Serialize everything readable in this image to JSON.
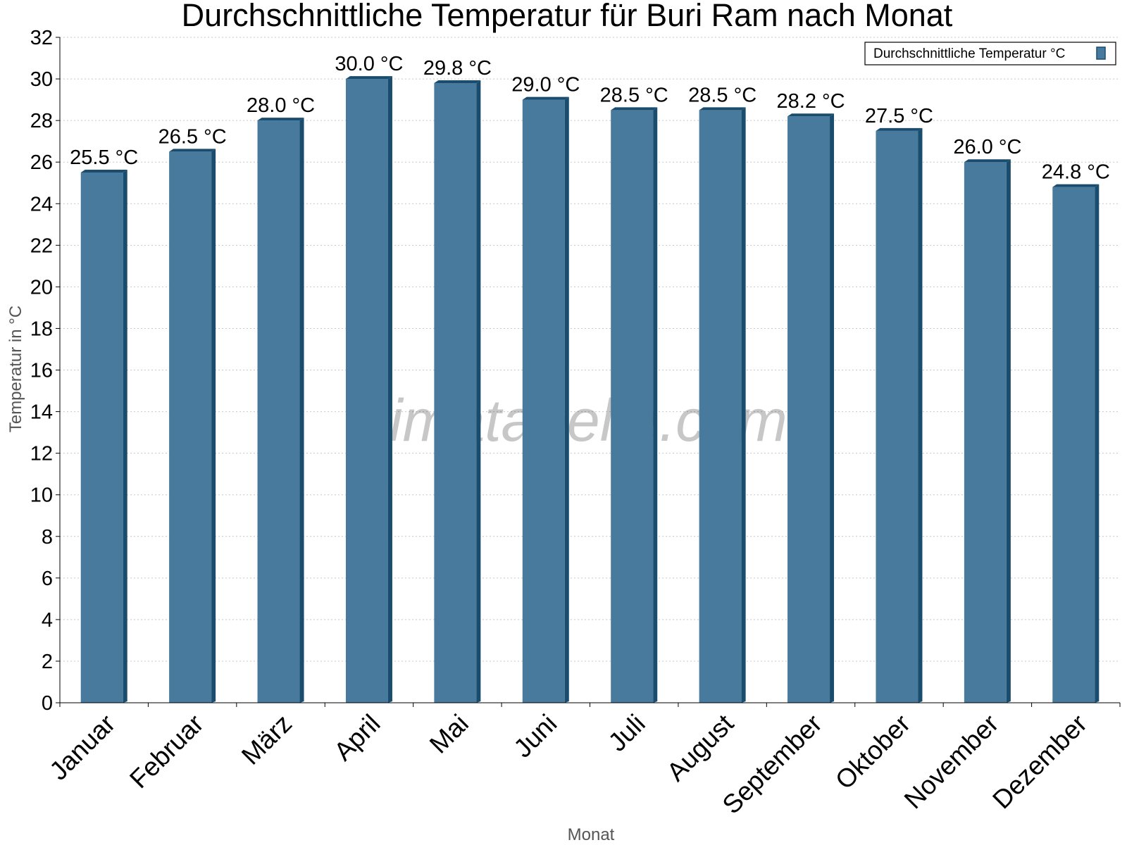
{
  "chart_data": {
    "type": "bar",
    "title": "Durchschnittliche Temperatur für Buri Ram nach Monat",
    "xlabel": "Monat",
    "ylabel": "Temperatur in °C",
    "categories": [
      "Januar",
      "Februar",
      "März",
      "April",
      "Mai",
      "Juni",
      "Juli",
      "August",
      "September",
      "Oktober",
      "November",
      "Dezember"
    ],
    "series": [
      {
        "name": "Durchschnittliche Temperatur °C",
        "values": [
          25.5,
          26.5,
          28.0,
          30.0,
          29.8,
          29.0,
          28.5,
          28.5,
          28.2,
          27.5,
          26.0,
          24.8
        ],
        "data_labels": [
          "25.5 °C",
          "26.5 °C",
          "28.0 °C",
          "30.0 °C",
          "29.8 °C",
          "29.0 °C",
          "28.5 °C",
          "28.5 °C",
          "28.2 °C",
          "27.5 °C",
          "26.0 °C",
          "24.8 °C"
        ],
        "color": "#477a9d",
        "edge_color": "#1a4c6e"
      }
    ],
    "ylim": [
      0,
      32
    ],
    "yticks": [
      "0",
      "2",
      "4",
      "6",
      "8",
      "10",
      "12",
      "14",
      "16",
      "18",
      "20",
      "22",
      "24",
      "26",
      "28",
      "30",
      "32"
    ],
    "grid": true,
    "legend_position": "top-right",
    "watermark": "klimatabelle.com"
  }
}
